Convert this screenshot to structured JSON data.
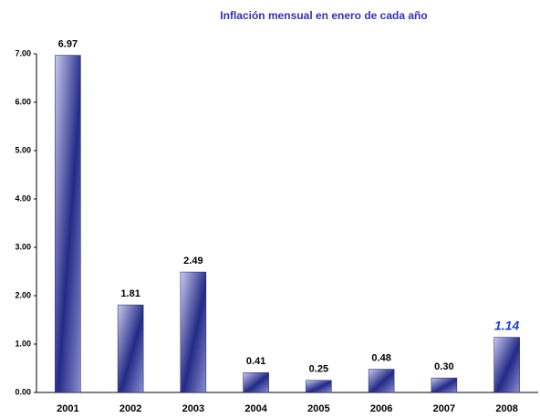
{
  "chart_data": {
    "type": "bar",
    "title": "Inflación mensual en enero de cada año",
    "categories": [
      "2001",
      "2002",
      "2003",
      "2004",
      "2005",
      "2006",
      "2007",
      "2008"
    ],
    "values": [
      6.97,
      1.81,
      2.49,
      0.41,
      0.25,
      0.48,
      0.3,
      1.14
    ],
    "value_labels": [
      "6.97",
      "1.81",
      "2.49",
      "0.41",
      "0.25",
      "0.48",
      "0.30",
      "1.14"
    ],
    "value_label_colors": [
      "#000000",
      "#000000",
      "#000000",
      "#000000",
      "#000000",
      "#000000",
      "#000000",
      "#1f3fcf"
    ],
    "color": "#232a86",
    "ylim": [
      0,
      7
    ],
    "yticks": [
      {
        "value": 0,
        "label": "0.00"
      },
      {
        "value": 1,
        "label": "1.00"
      },
      {
        "value": 2,
        "label": "2.00"
      },
      {
        "value": 3,
        "label": "3.00"
      },
      {
        "value": 4,
        "label": "4.00"
      },
      {
        "value": 5,
        "label": "5.00"
      },
      {
        "value": 6,
        "label": "6.00"
      },
      {
        "value": 7,
        "label": "7.00"
      }
    ],
    "grid": false
  }
}
